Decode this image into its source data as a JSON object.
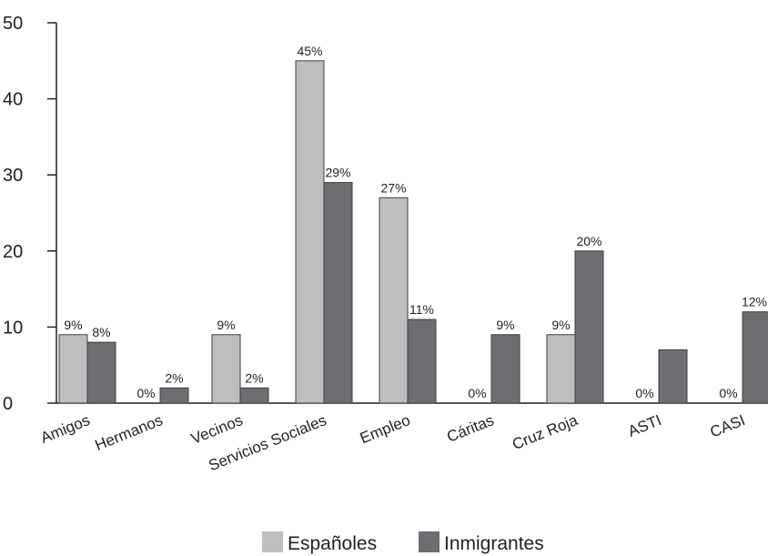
{
  "chart_data": {
    "type": "bar",
    "categories": [
      "Amigos",
      "Hermanos",
      "Vecinos",
      "Servicios Sociales",
      "Empleo",
      "Cáritas",
      "Cruz Roja",
      "ASTI",
      "CASI"
    ],
    "series": [
      {
        "name": "Españoles",
        "values": [
          9,
          0,
          9,
          45,
          27,
          0,
          9,
          0,
          0
        ],
        "labels": [
          "9%",
          "0%",
          "9%",
          "45%",
          "27%",
          "0%",
          "9%",
          "0%",
          "0%"
        ]
      },
      {
        "name": "Inmigrantes",
        "values": [
          8,
          2,
          2,
          29,
          11,
          9,
          20,
          7,
          12
        ],
        "labels": [
          "8%",
          "2%",
          "2%",
          "29%",
          "11%",
          "9%",
          "20%",
          "",
          "12%"
        ]
      }
    ],
    "title": "",
    "xlabel": "",
    "ylabel": "",
    "ylim": [
      0,
      50
    ],
    "yticks": [
      0,
      10,
      20,
      30,
      40,
      50
    ],
    "grid": false,
    "legend_position": "bottom-center",
    "colors": {
      "Españoles": "#bcbec0",
      "Inmigrantes": "#6d6e71",
      "axis": "#231f20"
    }
  }
}
